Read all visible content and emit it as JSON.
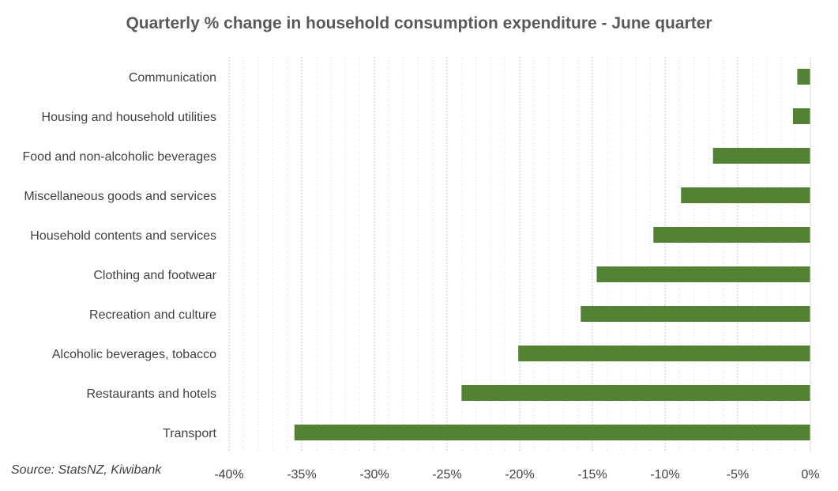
{
  "chart_data": {
    "type": "bar",
    "orientation": "horizontal",
    "title": "Quarterly % change in household consumption expenditure - June quarter",
    "source": "Source: StatsNZ, Kiwibank",
    "categories": [
      "Communication",
      "Housing and household utilities",
      "Food and non-alcoholic beverages",
      "Miscellaneous goods and services",
      "Household contents and services",
      "Clothing and footwear",
      "Recreation and culture",
      "Alcoholic beverages, tobacco",
      "Restaurants and hotels",
      "Transport"
    ],
    "values": [
      -0.9,
      -1.2,
      -6.7,
      -8.9,
      -10.8,
      -14.7,
      -15.8,
      -20.1,
      -24.0,
      -35.5
    ],
    "xlim": [
      -40,
      0
    ],
    "xticks": [
      -40,
      -35,
      -30,
      -25,
      -20,
      -15,
      -10,
      -5,
      0
    ],
    "xtick_labels": [
      "-40%",
      "-35%",
      "-30%",
      "-25%",
      "-20%",
      "-15%",
      "-10%",
      "-5%",
      "0%"
    ],
    "grid": true,
    "bar_color": "#548235"
  }
}
